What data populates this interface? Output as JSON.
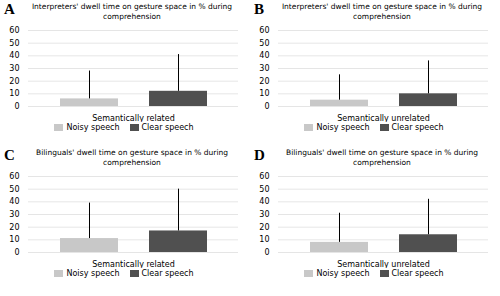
{
  "chart_data": [
    {
      "type": "bar",
      "title": "Interpreters' dwell time on gesture space in % during\ncomprehension",
      "annotations": [
        "A"
      ],
      "categories": [
        "Semantically related"
      ],
      "series": [
        {
          "name": "Noisy speech",
          "color": "#c8c8c8",
          "values": [
            6
          ],
          "errors_up": [
            22
          ]
        },
        {
          "name": "Clear speech",
          "color": "#505050",
          "values": [
            12
          ],
          "errors_up": [
            29
          ]
        }
      ],
      "ylim": [
        0,
        60
      ],
      "yticks": [
        0,
        10,
        20,
        30,
        40,
        50,
        60
      ],
      "grid": true,
      "legend": "bottom"
    },
    {
      "type": "bar",
      "title": "Interpreters' dwell time on gesture space in % during\ncomprehension",
      "annotations": [
        "B"
      ],
      "categories": [
        "Semantically unrelated"
      ],
      "series": [
        {
          "name": "Noisy speech",
          "color": "#c8c8c8",
          "values": [
            5
          ],
          "errors_up": [
            20
          ]
        },
        {
          "name": "Clear speech",
          "color": "#505050",
          "values": [
            10
          ],
          "errors_up": [
            26
          ]
        }
      ],
      "ylim": [
        0,
        60
      ],
      "yticks": [
        0,
        10,
        20,
        30,
        40,
        50,
        60
      ],
      "grid": true,
      "legend": "bottom"
    },
    {
      "type": "bar",
      "title": "Bilinguals' dwell time on gesture space in % during\ncomprehension",
      "annotations": [
        "C"
      ],
      "categories": [
        "Semantically related"
      ],
      "series": [
        {
          "name": "Noisy speech",
          "color": "#c8c8c8",
          "values": [
            11
          ],
          "errors_up": [
            28
          ]
        },
        {
          "name": "Clear speech",
          "color": "#505050",
          "values": [
            17
          ],
          "errors_up": [
            33
          ]
        }
      ],
      "ylim": [
        0,
        60
      ],
      "yticks": [
        0,
        10,
        20,
        30,
        40,
        50,
        60
      ],
      "grid": true,
      "legend": "bottom"
    },
    {
      "type": "bar",
      "title": "Bilinguals' dwell time on gesture space in % during\ncomprehension",
      "annotations": [
        "D"
      ],
      "categories": [
        "Semantically unrelated"
      ],
      "series": [
        {
          "name": "Noisy speech",
          "color": "#c8c8c8",
          "values": [
            8
          ],
          "errors_up": [
            23
          ]
        },
        {
          "name": "Clear speech",
          "color": "#505050",
          "values": [
            14
          ],
          "errors_up": [
            28
          ]
        }
      ],
      "ylim": [
        0,
        60
      ],
      "yticks": [
        0,
        10,
        20,
        30,
        40,
        50,
        60
      ],
      "grid": true,
      "legend": "bottom"
    }
  ]
}
